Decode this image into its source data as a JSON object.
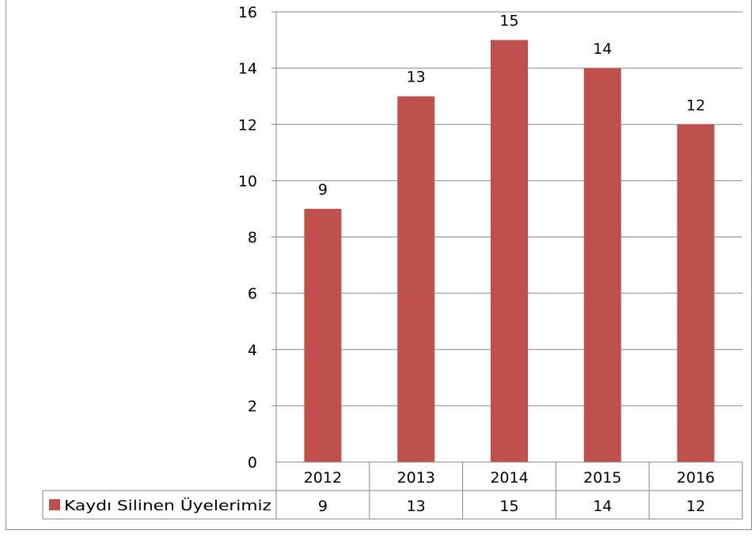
{
  "chart_data": {
    "type": "bar",
    "categories": [
      "2012",
      "2013",
      "2014",
      "2015",
      "2016"
    ],
    "series": [
      {
        "name": "Kaydı Silinen Üyelerimiz",
        "values": [
          9,
          13,
          15,
          14,
          12
        ],
        "color": "#c0504d"
      }
    ],
    "yticks": [
      "0",
      "2",
      "4",
      "6",
      "8",
      "10",
      "12",
      "14",
      "16"
    ],
    "ylim": [
      0,
      16
    ],
    "grid": true,
    "legend": "data-table-left",
    "data_table": true,
    "colors": {
      "bar": "#c0504d",
      "grid": "#868686",
      "frame": "#8c8c8c"
    }
  }
}
